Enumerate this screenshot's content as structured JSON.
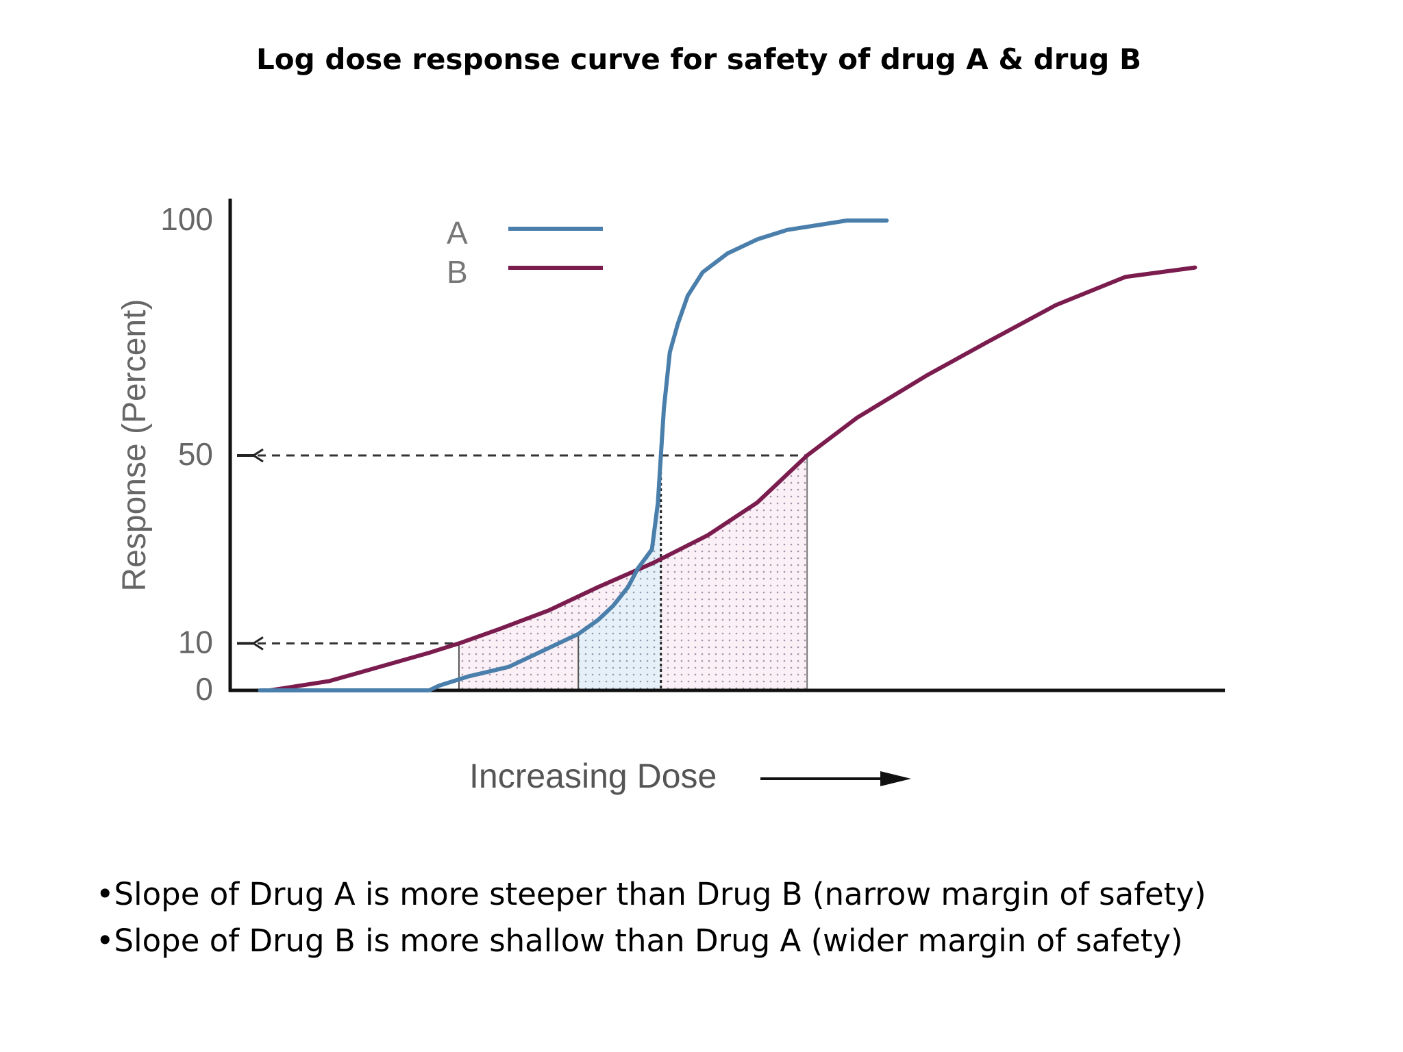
{
  "slide_title": "Log dose response curve for safety of drug A & drug B",
  "bullets": [
    "•Slope of Drug A is more steeper than Drug B (narrow margin of safety)",
    "•Slope of Drug B is more shallow than Drug A (wider margin of safety)"
  ],
  "chart_data": {
    "type": "line",
    "title": "",
    "xlabel": "Increasing Dose",
    "ylabel": "Response (Percent)",
    "x_ticks_visible": false,
    "yticks": [
      0,
      10,
      50,
      100
    ],
    "ylim": [
      0,
      100
    ],
    "xlim": [
      0,
      100
    ],
    "grid": false,
    "legend_position": "top-center",
    "series": [
      {
        "name": "A",
        "color": "#4a7fab",
        "x": [
          3,
          10,
          20,
          21,
          24,
          28,
          32,
          35,
          37,
          38.5,
          40,
          41,
          42.4,
          43,
          43.3,
          43.6,
          44.2,
          45,
          46,
          47.5,
          50,
          53,
          56,
          59,
          62,
          66
        ],
        "y": [
          0,
          0,
          0,
          1,
          3,
          5,
          9,
          12,
          15,
          18,
          22,
          26,
          30,
          40,
          50,
          60,
          72,
          78,
          84,
          89,
          93,
          96,
          98,
          99,
          100,
          100
        ]
      },
      {
        "name": "B",
        "color": "#7b1c4f",
        "x": [
          4,
          10,
          15,
          20,
          23,
          27,
          32,
          37,
          42.4,
          48,
          53,
          58,
          63,
          70,
          76,
          83,
          90,
          97
        ],
        "y": [
          0,
          2,
          5,
          8,
          10,
          13,
          17,
          22,
          27,
          33,
          40,
          50,
          58,
          67,
          74,
          82,
          88,
          90
        ]
      }
    ],
    "reference_lines": [
      {
        "y": 50,
        "to_x": 58
      },
      {
        "y": 10,
        "to_x": 23
      }
    ],
    "markers": [
      {
        "x": 23,
        "y": 10
      },
      {
        "x": 35,
        "y": 10
      },
      {
        "x": 43.3,
        "y": 28
      },
      {
        "x": 58,
        "y": 50
      }
    ]
  }
}
